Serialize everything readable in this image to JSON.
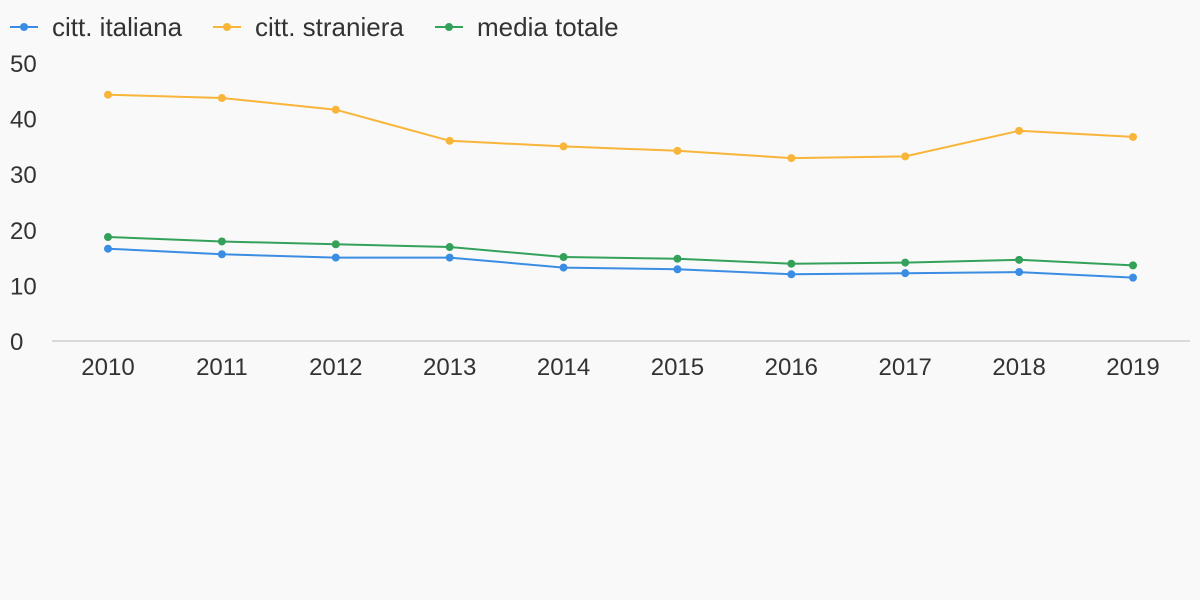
{
  "chart_data": {
    "type": "line",
    "categories": [
      "2010",
      "2011",
      "2012",
      "2013",
      "2014",
      "2015",
      "2016",
      "2017",
      "2018",
      "2019"
    ],
    "series": [
      {
        "name": "citt. italiana",
        "color": "#3b8de3",
        "values": [
          16.6,
          15.6,
          15.0,
          15.0,
          13.2,
          12.9,
          12.0,
          12.2,
          12.4,
          11.4
        ]
      },
      {
        "name": "citt. straniera",
        "color": "#f8b53a",
        "values": [
          44.3,
          43.7,
          41.6,
          36.0,
          35.0,
          34.2,
          32.9,
          33.2,
          37.8,
          36.7
        ]
      },
      {
        "name": "media totale",
        "color": "#34a15a",
        "values": [
          18.7,
          17.9,
          17.4,
          16.9,
          15.1,
          14.8,
          13.9,
          14.1,
          14.6,
          13.6
        ]
      }
    ],
    "y_ticks": [
      "0",
      "10",
      "20",
      "30",
      "40",
      "50"
    ],
    "ylim": [
      0,
      50
    ],
    "grid": false,
    "legend_position": "top-left",
    "axis_color": "#d9d9d9"
  }
}
